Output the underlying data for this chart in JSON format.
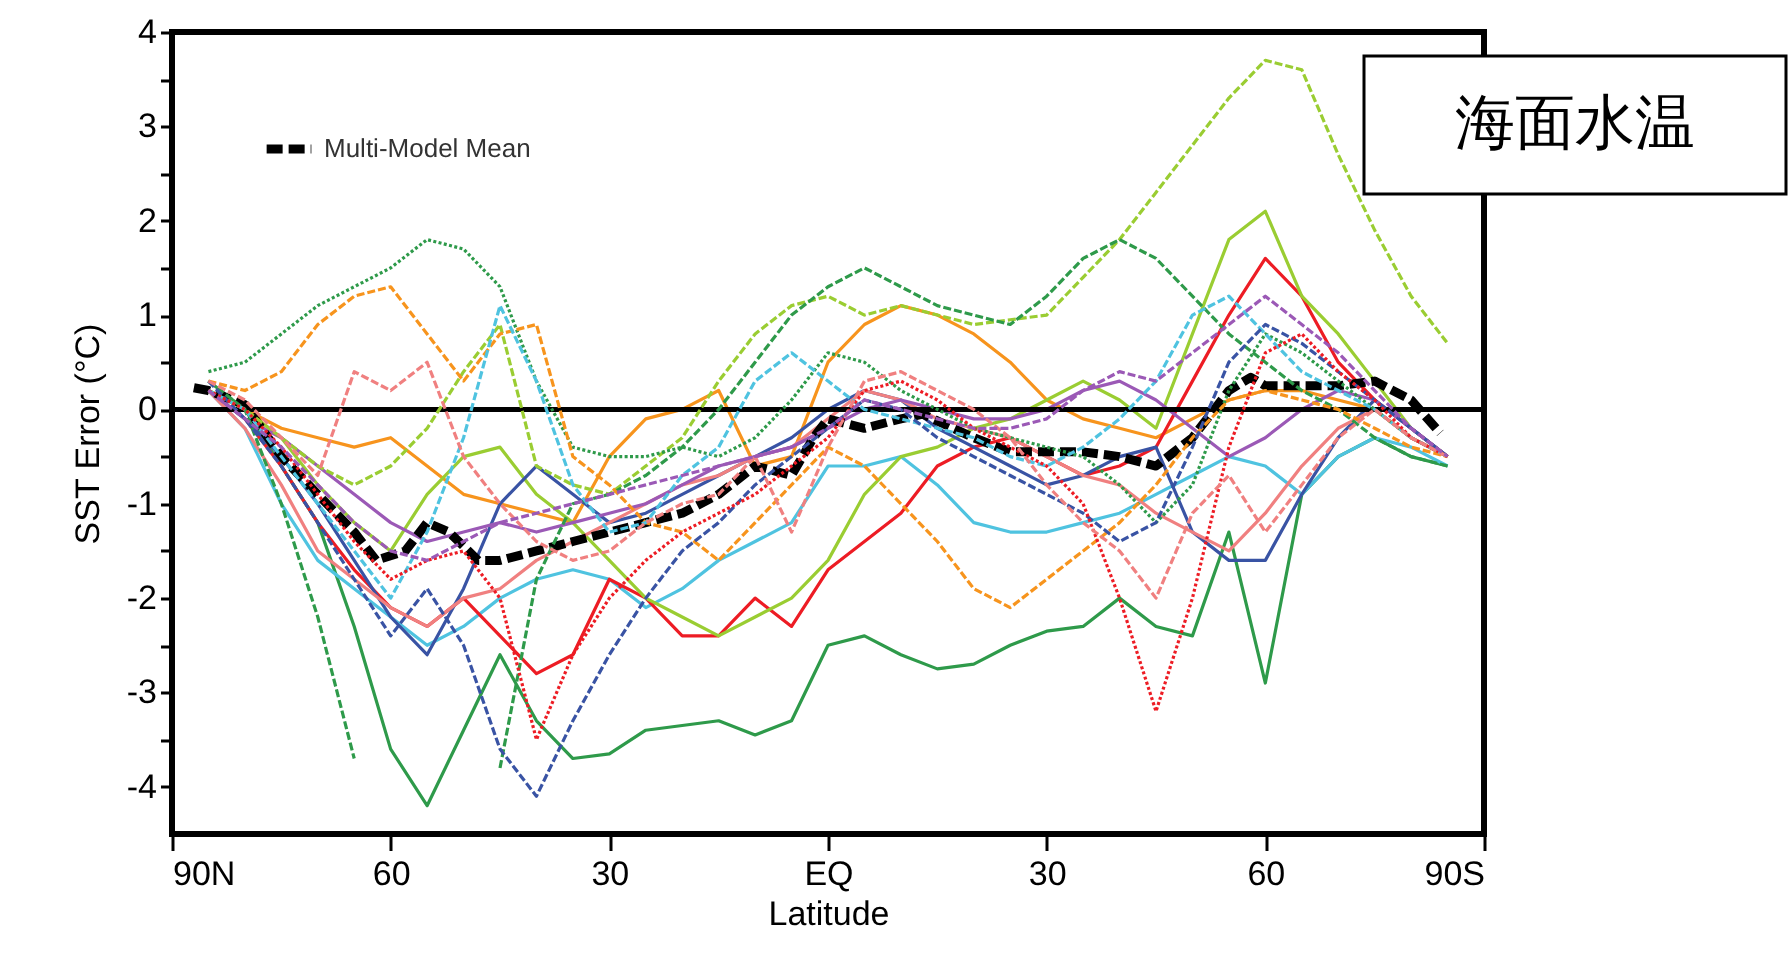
{
  "chart_data": {
    "type": "line",
    "xlabel": "Latitude",
    "ylabel": "SST Error (°C)",
    "xlim": [
      90,
      -90
    ],
    "xticks": [
      {
        "value": 90,
        "label": "90N"
      },
      {
        "value": 60,
        "label": "60"
      },
      {
        "value": 30,
        "label": "30"
      },
      {
        "value": 0,
        "label": "EQ"
      },
      {
        "value": -30,
        "label": "30"
      },
      {
        "value": -60,
        "label": "60"
      },
      {
        "value": -90,
        "label": "90S"
      }
    ],
    "ylim": [
      -4.5,
      4
    ],
    "yticks": [
      -4,
      {
        "value": -3.5,
        "label": null
      },
      -3,
      {
        "value": -2.5,
        "label": null
      },
      -2,
      {
        "value": -1.5,
        "label": null
      },
      -1,
      {
        "value": -0.5,
        "label": null
      },
      0,
      {
        "value": 0.5,
        "label": null
      },
      1,
      {
        "value": 1.5,
        "label": null
      },
      2,
      {
        "value": 2.5,
        "label": null
      },
      3,
      {
        "value": 3.5,
        "label": null
      },
      4
    ],
    "grid": false,
    "legend": "top left",
    "ref_lines": [
      {
        "axis": "y",
        "value": 0,
        "color": "#000000"
      }
    ],
    "annotations": [
      "海面水温"
    ],
    "x": [
      85,
      80,
      75,
      70,
      65,
      60,
      55,
      50,
      45,
      40,
      35,
      30,
      25,
      20,
      15,
      10,
      5,
      0,
      -5,
      -10,
      -15,
      -20,
      -25,
      -30,
      -35,
      -40,
      -45,
      -50,
      -55,
      -60,
      -65,
      -70,
      -75,
      -80,
      -85
    ],
    "series": [
      {
        "color": "#2e9a4a",
        "line_style": "solid",
        "values": [
          0.3,
          0,
          -0.6,
          -1.2,
          -2.3,
          -3.6,
          -4.2,
          -3.4,
          -2.6,
          -3.3,
          -3.7,
          -3.65,
          -3.4,
          -3.35,
          -3.3,
          -3.45,
          -3.3,
          -2.5,
          -2.4,
          -2.6,
          -2.75,
          -2.7,
          -2.5,
          -2.35,
          -2.3,
          -2.0,
          -2.3,
          -2.4,
          -1.3,
          -2.9,
          -0.9,
          -0.5,
          -0.3,
          -0.5,
          -0.6
        ]
      },
      {
        "color": "#9acd32",
        "line_style": "dashed",
        "values": [
          0.2,
          0,
          -0.3,
          -0.6,
          -0.8,
          -0.6,
          -0.2,
          0.4,
          0.9,
          -0.6,
          -0.8,
          -0.9,
          -0.6,
          -0.3,
          0.3,
          0.8,
          1.1,
          1.2,
          1.0,
          1.1,
          1.0,
          0.9,
          0.95,
          1.0,
          1.4,
          1.8,
          2.3,
          2.8,
          3.3,
          3.7,
          3.6,
          2.7,
          1.9,
          1.2,
          0.7
        ]
      },
      {
        "color": "#2e9a4a",
        "line_style": "dashed",
        "values": [
          0.3,
          0,
          -1,
          -2.2,
          -3.7,
          null,
          null,
          null,
          -3.8,
          -1.8,
          -1.0,
          -0.9,
          -0.7,
          -0.4,
          0,
          0.5,
          1.0,
          1.3,
          1.5,
          1.3,
          1.1,
          1.0,
          0.9,
          1.2,
          1.6,
          1.8,
          1.6,
          1.2,
          0.8,
          0.5,
          0.2,
          0,
          -0.3,
          -0.5,
          -0.6
        ]
      },
      {
        "color": "#2e9a4a",
        "line_style": "dotted",
        "values": [
          0.4,
          0.5,
          0.8,
          1.1,
          1.3,
          1.5,
          1.8,
          1.7,
          1.3,
          0.3,
          -0.4,
          -0.5,
          -0.5,
          -0.4,
          -0.5,
          -0.3,
          0.1,
          0.6,
          0.5,
          0.2,
          0,
          -0.2,
          -0.3,
          -0.4,
          -0.5,
          -0.8,
          -1.2,
          -0.8,
          0.2,
          0.8,
          0.6,
          0.3,
          0,
          -0.3,
          -0.5
        ]
      },
      {
        "color": "#f7941d",
        "line_style": "dashed",
        "values": [
          0.3,
          0.2,
          0.4,
          0.9,
          1.2,
          1.3,
          0.8,
          0.3,
          0.8,
          0.9,
          -0.5,
          -0.8,
          -1.2,
          -1.3,
          -1.6,
          -1.2,
          -0.8,
          -0.4,
          -0.6,
          -1.0,
          -1.4,
          -1.9,
          -2.1,
          -1.8,
          -1.5,
          -1.2,
          -0.8,
          -0.3,
          0.1,
          0.2,
          0.1,
          0,
          -0.2,
          -0.4,
          -0.5
        ]
      },
      {
        "color": "#f7941d",
        "line_style": "solid",
        "values": [
          0.2,
          0,
          -0.2,
          -0.3,
          -0.4,
          -0.3,
          -0.6,
          -0.9,
          -1.0,
          -1.1,
          -1.2,
          -0.5,
          -0.1,
          0,
          0.2,
          -0.6,
          -0.5,
          0.5,
          0.9,
          1.1,
          1.0,
          0.8,
          0.5,
          0.1,
          -0.1,
          -0.2,
          -0.3,
          -0.1,
          0.1,
          0.2,
          0.2,
          0.1,
          0,
          -0.3,
          -0.5
        ]
      },
      {
        "color": "#4fc3e0",
        "line_style": "dashed",
        "values": [
          0.2,
          0,
          -0.5,
          -1,
          -1.5,
          -2,
          -1.3,
          -0.3,
          1.1,
          0.3,
          -0.8,
          -1.3,
          -1.2,
          -0.7,
          -0.4,
          0.3,
          0.6,
          0.3,
          0,
          -0.1,
          -0.2,
          -0.3,
          -0.5,
          -0.6,
          -0.4,
          -0.1,
          0.3,
          1.0,
          1.2,
          0.8,
          0.4,
          0.2,
          0,
          -0.3,
          -0.5
        ]
      },
      {
        "color": "#4fc3e0",
        "line_style": "solid",
        "values": [
          0.2,
          -0.2,
          -1.0,
          -1.6,
          -1.9,
          -2.2,
          -2.5,
          -2.3,
          -2.0,
          -1.8,
          -1.7,
          -1.8,
          -2.1,
          -1.9,
          -1.6,
          -1.4,
          -1.2,
          -0.6,
          -0.6,
          -0.5,
          -0.8,
          -1.2,
          -1.3,
          -1.3,
          -1.2,
          -1.1,
          -0.9,
          -0.7,
          -0.5,
          -0.6,
          -0.9,
          -0.5,
          -0.3,
          -0.4,
          -0.6
        ]
      },
      {
        "color": "#ed1c24",
        "line_style": "solid",
        "values": [
          0.2,
          -0.1,
          -0.6,
          -1.2,
          -1.7,
          -2.1,
          -2.3,
          -2.0,
          -2.4,
          -2.8,
          -2.6,
          -1.8,
          -2.0,
          -2.4,
          -2.4,
          -2.0,
          -2.3,
          -1.7,
          -1.4,
          -1.1,
          -0.6,
          -0.4,
          -0.3,
          -0.5,
          -0.7,
          -0.6,
          -0.4,
          0.3,
          1.0,
          1.6,
          1.2,
          0.5,
          0.1,
          -0.2,
          -0.5
        ]
      },
      {
        "color": "#9acd32",
        "line_style": "solid",
        "values": [
          0.2,
          0,
          -0.3,
          -0.8,
          -1.2,
          -1.5,
          -0.9,
          -0.5,
          -0.4,
          -0.9,
          -1.2,
          -1.6,
          -2.0,
          -2.2,
          -2.4,
          -2.2,
          -2.0,
          -1.6,
          -0.9,
          -0.5,
          -0.4,
          -0.2,
          -0.1,
          0.1,
          0.3,
          0.1,
          -0.2,
          0.8,
          1.8,
          2.1,
          1.2,
          0.8,
          0.3,
          -0.2,
          -0.5
        ]
      },
      {
        "color": "#3953a4",
        "line_style": "solid",
        "values": [
          0.2,
          -0.1,
          -0.5,
          -1.0,
          -1.6,
          -2.2,
          -2.6,
          -1.9,
          -1.0,
          -0.6,
          -0.9,
          -1.2,
          -1.1,
          -0.9,
          -0.7,
          -0.5,
          -0.3,
          0,
          0.2,
          0.1,
          -0.2,
          -0.4,
          -0.6,
          -0.8,
          -0.7,
          -0.5,
          -0.4,
          -1.3,
          -1.6,
          -1.6,
          -0.9,
          -0.3,
          0.1,
          -0.2,
          -0.5
        ]
      },
      {
        "color": "#3953a4",
        "line_style": "dashed",
        "values": [
          0.3,
          -0.1,
          -0.6,
          -1.2,
          -1.8,
          -2.4,
          -1.9,
          -2.5,
          -3.6,
          -4.1,
          -3.3,
          -2.6,
          -2.0,
          -1.5,
          -1.2,
          -0.8,
          -0.5,
          -0.2,
          0.1,
          0,
          -0.3,
          -0.5,
          -0.7,
          -0.9,
          -1.1,
          -1.4,
          -1.2,
          -0.4,
          0.5,
          0.9,
          0.7,
          0.4,
          0.1,
          -0.2,
          -0.5
        ]
      },
      {
        "color": "#ed1c24",
        "line_style": "dotted",
        "values": [
          0.2,
          0,
          -0.4,
          -0.9,
          -1.4,
          -1.8,
          -1.6,
          -1.5,
          -2.0,
          -3.5,
          -2.6,
          -2.0,
          -1.6,
          -1.3,
          -1.1,
          -0.9,
          -0.6,
          -0.3,
          0.2,
          0.3,
          0.1,
          -0.2,
          -0.4,
          -0.6,
          -1.0,
          -2.0,
          -3.2,
          -2.0,
          -0.4,
          0.6,
          0.8,
          0.4,
          0.1,
          -0.3,
          -0.5
        ]
      },
      {
        "color": "#f08080",
        "line_style": "dashed",
        "values": [
          0.3,
          0.1,
          -0.3,
          -0.7,
          0.4,
          0.2,
          0.5,
          -0.5,
          -1.0,
          -1.4,
          -1.6,
          -1.5,
          -1.2,
          -1.0,
          -0.9,
          -0.5,
          -1.3,
          -0.4,
          0.3,
          0.4,
          0.2,
          0,
          -0.3,
          -0.8,
          -1.2,
          -1.5,
          -2.0,
          -1.1,
          -0.7,
          -1.3,
          -0.8,
          -0.3,
          0,
          -0.3,
          -0.5
        ]
      },
      {
        "color": "#f08080",
        "line_style": "solid",
        "values": [
          0.2,
          -0.2,
          -0.8,
          -1.5,
          -1.8,
          -2.1,
          -2.3,
          -2.0,
          -1.9,
          -1.6,
          -1.4,
          -1.2,
          -1.0,
          -0.8,
          -0.7,
          -0.5,
          -0.4,
          -0.1,
          0.2,
          0.1,
          -0.1,
          -0.2,
          -0.3,
          -0.5,
          -0.7,
          -0.8,
          -1.1,
          -1.3,
          -1.5,
          -1.1,
          -0.6,
          -0.2,
          0,
          -0.3,
          -0.5
        ]
      },
      {
        "color": "#9b59b6",
        "line_style": "dashed",
        "values": [
          0.2,
          -0.1,
          -0.4,
          -0.8,
          -1.2,
          -1.5,
          -1.6,
          -1.4,
          -1.2,
          -1.1,
          -1.0,
          -0.9,
          -0.8,
          -0.7,
          -0.6,
          -0.5,
          -0.4,
          -0.2,
          0.1,
          0,
          -0.1,
          -0.2,
          -0.2,
          -0.1,
          0.2,
          0.4,
          0.3,
          0.6,
          0.9,
          1.2,
          0.9,
          0.6,
          0.2,
          -0.2,
          -0.5
        ]
      },
      {
        "color": "#9b59b6",
        "line_style": "solid",
        "values": [
          0.2,
          -0.1,
          -0.3,
          -0.6,
          -0.9,
          -1.2,
          -1.4,
          -1.3,
          -1.2,
          -1.3,
          -1.2,
          -1.1,
          -1.0,
          -0.8,
          -0.6,
          -0.5,
          -0.4,
          -0.2,
          0,
          0.1,
          0,
          -0.1,
          -0.1,
          0,
          0.2,
          0.3,
          0.1,
          -0.2,
          -0.5,
          -0.3,
          0,
          0.2,
          0.1,
          -0.2,
          -0.5
        ]
      },
      {
        "name": "Multi-Model Mean",
        "color": "#000000",
        "line_style": "dashed",
        "x": [
          87,
          85,
          80,
          75,
          70,
          65,
          62,
          58,
          55,
          52,
          48,
          45,
          40,
          35,
          30,
          25,
          20,
          15,
          10,
          5,
          2,
          0,
          -5,
          -10,
          -13,
          -20,
          -25,
          -30,
          -35,
          -40,
          -45,
          -50,
          -55,
          -58,
          -60,
          -65,
          -70,
          -75,
          -80,
          -84
        ],
        "values": [
          0.23,
          0.2,
          0.05,
          -0.5,
          -0.9,
          -1.3,
          -1.6,
          -1.5,
          -1.2,
          -1.3,
          -1.6,
          -1.6,
          -1.5,
          -1.4,
          -1.3,
          -1.2,
          -1.1,
          -0.9,
          -0.6,
          -0.7,
          -0.3,
          -0.1,
          -0.2,
          -0.1,
          -0.05,
          -0.3,
          -0.45,
          -0.45,
          -0.45,
          -0.5,
          -0.6,
          -0.3,
          0.2,
          0.34,
          0.25,
          0.25,
          0.25,
          0.3,
          0.1,
          -0.25
        ]
      }
    ]
  }
}
